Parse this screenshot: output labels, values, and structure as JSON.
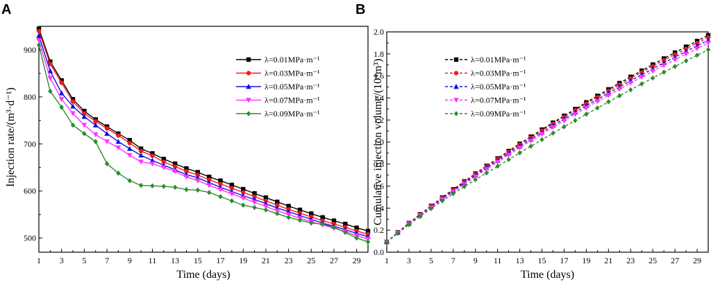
{
  "chart_data": [
    {
      "panel": "A",
      "type": "line",
      "xlabel": "Time (days)",
      "ylabel": "Injection rate/(m³·d⁻¹)",
      "xlim": [
        1,
        30
      ],
      "ylim": [
        470,
        950
      ],
      "xticks": [
        "1",
        "3",
        "5",
        "7",
        "9",
        "11",
        "13",
        "15",
        "17",
        "19",
        "21",
        "23",
        "25",
        "27",
        "29"
      ],
      "yticks": [
        "500",
        "600",
        "700",
        "800",
        "900"
      ],
      "legend_position": "top-right",
      "x": [
        1,
        2,
        3,
        4,
        5,
        6,
        7,
        8,
        9,
        10,
        11,
        12,
        13,
        14,
        15,
        16,
        17,
        18,
        19,
        20,
        21,
        22,
        23,
        24,
        25,
        26,
        27,
        28,
        29,
        30
      ],
      "series": [
        {
          "name": "λ=0.01MPa·m⁻¹",
          "color": "#000000",
          "marker": "square",
          "dashed": false,
          "values": [
            945,
            875,
            835,
            795,
            770,
            752,
            737,
            722,
            708,
            690,
            680,
            668,
            658,
            648,
            640,
            630,
            622,
            613,
            604,
            595,
            586,
            577,
            568,
            560,
            552,
            544,
            537,
            530,
            522,
            515
          ]
        },
        {
          "name": "λ=0.03MPa·m⁻¹",
          "color": "#ee1c1c",
          "marker": "circle",
          "dashed": false,
          "values": [
            940,
            870,
            830,
            790,
            765,
            748,
            733,
            718,
            702,
            685,
            675,
            662,
            652,
            642,
            634,
            624,
            615,
            606,
            597,
            588,
            579,
            570,
            561,
            553,
            545,
            537,
            530,
            523,
            515,
            508
          ]
        },
        {
          "name": "λ=0.05MPa·m⁻¹",
          "color": "#1010e0",
          "marker": "triangle",
          "dashed": false,
          "values": [
            930,
            855,
            808,
            780,
            758,
            740,
            722,
            705,
            690,
            676,
            665,
            655,
            645,
            635,
            628,
            618,
            608,
            599,
            590,
            582,
            573,
            564,
            556,
            548,
            540,
            532,
            525,
            518,
            510,
            503
          ]
        },
        {
          "name": "λ=0.07MPa·m⁻¹",
          "color": "#ff33ff",
          "marker": "triangle-down",
          "dashed": false,
          "values": [
            920,
            840,
            795,
            765,
            740,
            720,
            705,
            692,
            676,
            662,
            658,
            650,
            642,
            630,
            622,
            612,
            603,
            594,
            585,
            576,
            567,
            558,
            550,
            542,
            535,
            528,
            521,
            514,
            505,
            498
          ]
        },
        {
          "name": "λ=0.09MPa·m⁻¹",
          "color": "#2c8c2c",
          "marker": "diamond",
          "dashed": false,
          "values": [
            910,
            812,
            778,
            740,
            722,
            705,
            658,
            638,
            622,
            612,
            611,
            610,
            608,
            603,
            602,
            597,
            588,
            579,
            570,
            565,
            560,
            552,
            544,
            538,
            532,
            530,
            523,
            512,
            500,
            492
          ]
        }
      ]
    },
    {
      "panel": "B",
      "type": "line",
      "xlabel": "Time (days)",
      "ylabel": "Cumulative injection volume/(10⁴m³)",
      "xlim": [
        1,
        30
      ],
      "ylim": [
        0.0,
        2.0
      ],
      "xticks": [
        "1",
        "3",
        "5",
        "7",
        "9",
        "11",
        "13",
        "15",
        "17",
        "19",
        "21",
        "23",
        "25",
        "27",
        "29"
      ],
      "yticks": [
        "0.0",
        "0.2",
        "0.4",
        "0.6",
        "0.8",
        "1.0",
        "1.2",
        "1.4",
        "1.6",
        "1.8",
        "2.0"
      ],
      "legend_position": "top-left",
      "x": [
        1,
        2,
        3,
        4,
        5,
        6,
        7,
        8,
        9,
        10,
        11,
        12,
        13,
        14,
        15,
        16,
        17,
        18,
        19,
        20,
        21,
        22,
        23,
        24,
        25,
        26,
        27,
        28,
        29,
        30
      ],
      "series": [
        {
          "name": "λ=0.01MPa·m⁻¹",
          "color": "#000000",
          "marker": "square",
          "dashed": true,
          "values": [
            0.094,
            0.181,
            0.265,
            0.344,
            0.421,
            0.497,
            0.571,
            0.643,
            0.714,
            0.783,
            0.851,
            0.918,
            0.984,
            1.049,
            1.113,
            1.176,
            1.238,
            1.299,
            1.36,
            1.419,
            1.478,
            1.535,
            1.592,
            1.648,
            1.703,
            1.758,
            1.812,
            1.865,
            1.917,
            1.969
          ]
        },
        {
          "name": "λ=0.03MPa·m⁻¹",
          "color": "#ee1c1c",
          "marker": "circle",
          "dashed": true,
          "values": [
            0.094,
            0.181,
            0.264,
            0.343,
            0.419,
            0.494,
            0.567,
            0.639,
            0.709,
            0.777,
            0.845,
            0.911,
            0.976,
            1.04,
            1.103,
            1.166,
            1.227,
            1.288,
            1.347,
            1.406,
            1.464,
            1.521,
            1.577,
            1.632,
            1.687,
            1.741,
            1.794,
            1.846,
            1.898,
            1.949
          ]
        },
        {
          "name": "λ=0.05MPa·m⁻¹",
          "color": "#1010e0",
          "marker": "triangle",
          "dashed": true,
          "values": [
            0.093,
            0.178,
            0.259,
            0.337,
            0.413,
            0.487,
            0.559,
            0.63,
            0.699,
            0.766,
            0.833,
            0.898,
            0.962,
            1.025,
            1.088,
            1.15,
            1.21,
            1.27,
            1.329,
            1.387,
            1.444,
            1.501,
            1.556,
            1.611,
            1.665,
            1.718,
            1.771,
            1.823,
            1.874,
            1.924
          ]
        },
        {
          "name": "λ=0.07MPa·m⁻¹",
          "color": "#ff33ff",
          "marker": "triangle-down",
          "dashed": true,
          "values": [
            0.092,
            0.176,
            0.255,
            0.332,
            0.406,
            0.478,
            0.549,
            0.618,
            0.686,
            0.752,
            0.818,
            0.883,
            0.947,
            1.01,
            1.072,
            1.133,
            1.193,
            1.252,
            1.31,
            1.368,
            1.424,
            1.48,
            1.535,
            1.589,
            1.643,
            1.696,
            1.748,
            1.799,
            1.849,
            1.899
          ]
        },
        {
          "name": "λ=0.09MPa·m⁻¹",
          "color": "#2c8c2c",
          "marker": "diamond",
          "dashed": true,
          "values": [
            0.091,
            0.172,
            0.25,
            0.324,
            0.396,
            0.466,
            0.532,
            0.596,
            0.658,
            0.719,
            0.78,
            0.841,
            0.902,
            0.962,
            1.022,
            1.081,
            1.139,
            1.196,
            1.253,
            1.309,
            1.365,
            1.42,
            1.474,
            1.528,
            1.581,
            1.634,
            1.686,
            1.737,
            1.788,
            1.838
          ]
        }
      ]
    }
  ]
}
